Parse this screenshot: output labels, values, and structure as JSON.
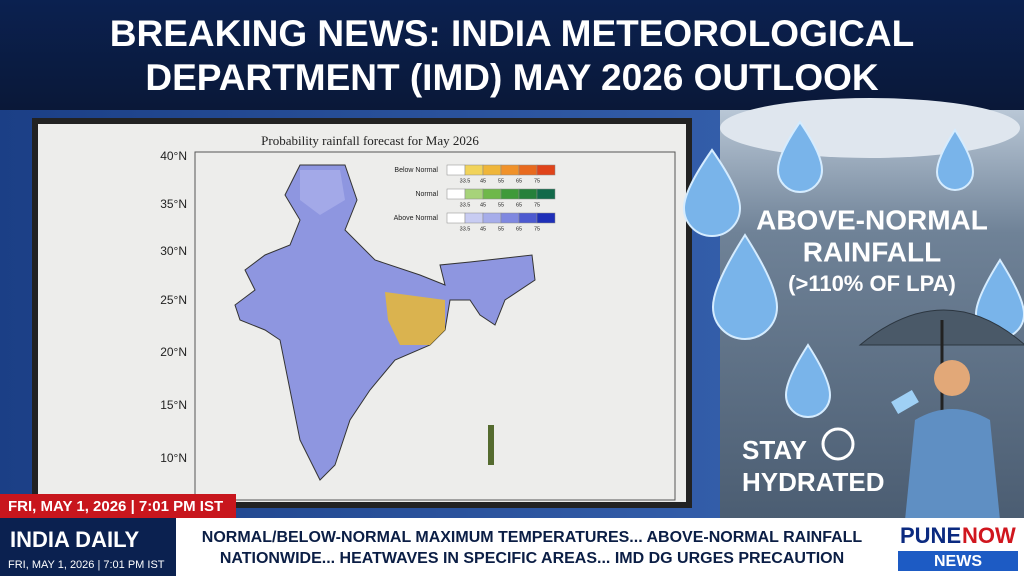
{
  "header": {
    "lines": [
      "BREAKING NEWS: INDIA METEOROLOGICAL",
      "DEPARTMENT (IMD) MAY 2026 OUTLOOK"
    ]
  },
  "map": {
    "title": "Probability rainfall forecast for May 2026",
    "latitudes": [
      "40°N",
      "35°N",
      "30°N",
      "25°N",
      "20°N",
      "15°N",
      "10°N"
    ],
    "legend": [
      {
        "label": "Below Normal",
        "scale": [
          "33.5",
          "45",
          "55",
          "65",
          "75"
        ]
      },
      {
        "label": "Normal",
        "scale": [
          "33.5",
          "45",
          "55",
          "65",
          "75"
        ]
      },
      {
        "label": "Above Normal",
        "scale": [
          "33.5",
          "45",
          "55",
          "65",
          "75"
        ]
      }
    ]
  },
  "side_panel": {
    "headline": [
      "ABOVE-NORMAL",
      "RAINFALL",
      "(>110% OF LPA)"
    ],
    "tip": [
      "STAY",
      "HYDRATED"
    ]
  },
  "date_bar": "FRI, MAY 1, 2026 | 7:01 PM IST",
  "channel": {
    "name": "INDIA DAILY",
    "date": "FRI, MAY 1, 2026 | 7:01 PM IST"
  },
  "ticker": [
    "NORMAL/BELOW-NORMAL MAXIMUM TEMPERATURES... ABOVE-NORMAL RAINFALL",
    "NATIONWIDE... HEATWAVES IN SPECIFIC AREAS... IMD DG URGES PRECAUTION"
  ],
  "logo": {
    "part1": "PUNE",
    "part2": "NOW",
    "sub": "NEWS"
  }
}
